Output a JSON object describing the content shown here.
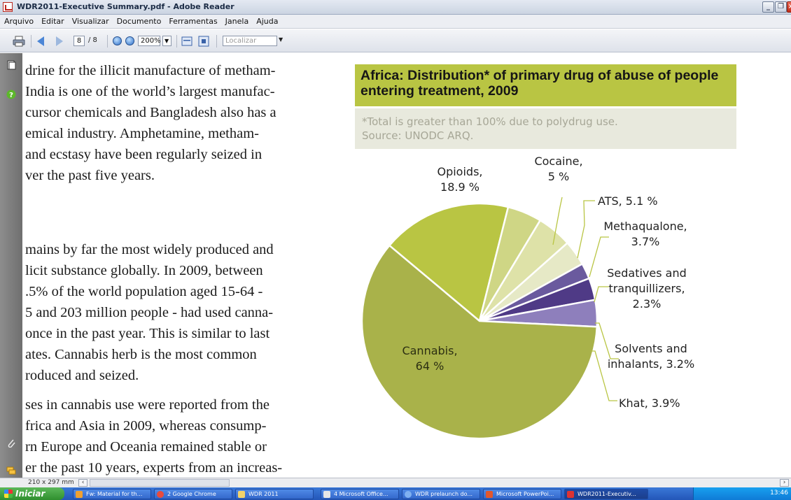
{
  "window": {
    "title": "WDR2011-Executive Summary.pdf - Adobe Reader"
  },
  "menu": [
    "Arquivo",
    "Editar",
    "Visualizar",
    "Documento",
    "Ferramentas",
    "Janela",
    "Ajuda"
  ],
  "toolbar": {
    "page_current": "8",
    "page_total": "/ 8",
    "zoom": "200%",
    "search_placeholder": "Localizar"
  },
  "document": {
    "body_lines": [
      "drine for the illicit manufacture of metham-",
      "India is one of the world’s largest manufac-",
      "cursor chemicals and Bangladesh also has a",
      "emical industry. Amphetamine, metham-",
      "and ecstasy have been regularly seized in",
      "ver the past five years.",
      "mains by far the most widely produced and",
      "licit substance globally. In 2009, between",
      ".5% of the world population aged 15-64 -",
      "5 and 203 million people - had used canna-",
      "once in the past year. This is similar to last",
      "ates. Cannabis herb is the most common",
      "roduced and seized.",
      "ses in cannabis use were reported from the",
      "frica and Asia in 2009, whereas consump-",
      "rn Europe and Oceania remained stable or",
      "er the past 10 years, experts from an increas-"
    ],
    "chart_title": "Africa: Distribution* of primary drug of abuse of people entering treatment, 2009",
    "chart_note": [
      "*Total is greater than 100% due to polydrug use.",
      "Source: UNODC ARQ."
    ]
  },
  "chart_data": {
    "type": "pie",
    "title": "Africa: Distribution* of primary drug of abuse of people entering treatment, 2009",
    "unit": "%",
    "slices": [
      {
        "label_lines": [
          "Opioids,",
          "18.9 %"
        ],
        "value": 18.9,
        "color": "#b9c543"
      },
      {
        "label_lines": [
          "Cocaine,",
          "5 %"
        ],
        "value": 5,
        "color": "#cfd685"
      },
      {
        "label_lines": [
          "ATS, 5.1 %"
        ],
        "value": 5.1,
        "color": "#dee2a8"
      },
      {
        "label_lines": [
          "Methaqualone,",
          "3.7%"
        ],
        "value": 3.7,
        "color": "#e6e9c6"
      },
      {
        "label_lines": [
          "Sedatives and",
          "tranquillizers,",
          "2.3%"
        ],
        "value": 2.3,
        "color": "#6a5a9e"
      },
      {
        "label_lines": [
          "Solvents and",
          "inhalants, 3.2%"
        ],
        "value": 3.2,
        "color": "#4f3a86"
      },
      {
        "label_lines": [
          "Khat, 3.9%"
        ],
        "value": 3.9,
        "color": "#8e7fbc"
      },
      {
        "label_lines": [
          "Cannabis,",
          "64 %"
        ],
        "value": 64,
        "color": "#a9b24a"
      }
    ]
  },
  "statusbar": {
    "page_size": "210 x 297 mm"
  },
  "taskbar": {
    "start_label": "Iniciar",
    "tasks": [
      {
        "label": "Fw: Material for th...",
        "color": "#f0a030"
      },
      {
        "label": "2 Google Chrome",
        "color": "#e94b3c"
      },
      {
        "label": "WDR 2011",
        "color": "#f2d36b"
      },
      {
        "label": "4 Microsoft Office...",
        "color": "#e6e6e6"
      },
      {
        "label": "WDR prelaunch do...",
        "color": "#7fb0f0"
      },
      {
        "label": "Microsoft PowerPoi...",
        "color": "#e2572d"
      },
      {
        "label": "WDR2011-Executiv...",
        "color": "#d33"
      }
    ],
    "clock": "13:46"
  }
}
